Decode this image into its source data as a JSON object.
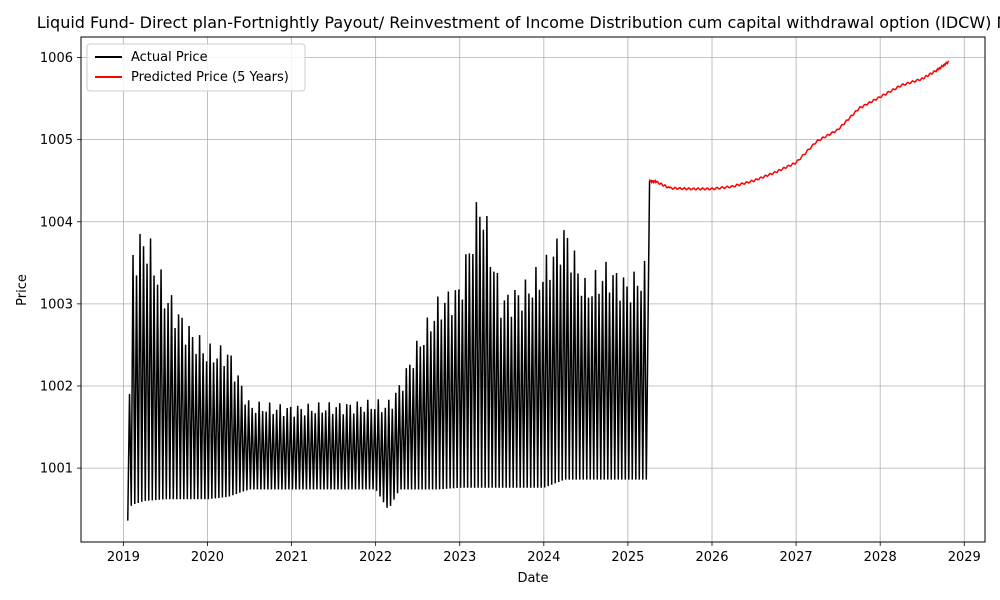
{
  "chart_data": {
    "type": "line",
    "title": "Liquid Fund- Direct plan-Fortnightly Payout/ Reinvestment of Income Distribution cum capital withdrawal option (IDCW) NAV",
    "xlabel": "Date",
    "ylabel": "Price",
    "xlim": [
      "2018-07-01",
      "2029-04-01"
    ],
    "ylim": [
      1000.1,
      1006.25
    ],
    "x_ticks": [
      "2019",
      "2020",
      "2021",
      "2022",
      "2023",
      "2024",
      "2025",
      "2026",
      "2027",
      "2028",
      "2029"
    ],
    "y_ticks": [
      "1001",
      "1002",
      "1003",
      "1004",
      "1005",
      "1006"
    ],
    "grid": true,
    "legend": "top-left",
    "series": [
      {
        "name": "Actual Price",
        "color": "#000000",
        "style": "oscillating",
        "envelope": [
          {
            "date": "2019-01-20",
            "low": 1000.36,
            "high": 1000.36
          },
          {
            "date": "2019-02-05",
            "low": 1000.55,
            "high": 1003.72
          },
          {
            "date": "2019-04-05",
            "low": 1000.6,
            "high": 1004.0
          },
          {
            "date": "2019-07-01",
            "low": 1000.62,
            "high": 1003.28
          },
          {
            "date": "2019-10-01",
            "low": 1000.62,
            "high": 1002.82
          },
          {
            "date": "2020-01-01",
            "low": 1000.62,
            "high": 1002.52
          },
          {
            "date": "2020-04-01",
            "low": 1000.65,
            "high": 1002.5
          },
          {
            "date": "2020-07-01",
            "low": 1000.74,
            "high": 1001.82
          },
          {
            "date": "2021-01-01",
            "low": 1000.74,
            "high": 1001.78
          },
          {
            "date": "2021-07-01",
            "low": 1000.74,
            "high": 1001.81
          },
          {
            "date": "2022-01-01",
            "low": 1000.74,
            "high": 1001.84
          },
          {
            "date": "2022-02-25",
            "low": 1000.49,
            "high": 1001.84
          },
          {
            "date": "2022-04-15",
            "low": 1000.74,
            "high": 1002.06
          },
          {
            "date": "2022-07-01",
            "low": 1000.74,
            "high": 1002.58
          },
          {
            "date": "2022-10-01",
            "low": 1000.74,
            "high": 1003.12
          },
          {
            "date": "2023-01-01",
            "low": 1000.76,
            "high": 1003.3
          },
          {
            "date": "2023-04-01",
            "low": 1000.76,
            "high": 1004.48
          },
          {
            "date": "2023-07-01",
            "low": 1000.76,
            "high": 1003.15
          },
          {
            "date": "2023-10-01",
            "low": 1000.76,
            "high": 1003.28
          },
          {
            "date": "2024-01-01",
            "low": 1000.76,
            "high": 1003.55
          },
          {
            "date": "2024-04-01",
            "low": 1000.86,
            "high": 1004.04
          },
          {
            "date": "2024-07-01",
            "low": 1000.86,
            "high": 1003.3
          },
          {
            "date": "2024-10-01",
            "low": 1000.86,
            "high": 1003.55
          },
          {
            "date": "2025-01-01",
            "low": 1000.86,
            "high": 1003.35
          },
          {
            "date": "2025-03-25",
            "low": 1000.86,
            "high": 1003.55
          }
        ],
        "end": {
          "date": "2025-04-05",
          "value": 1004.5
        }
      },
      {
        "name": "Predicted Price (5 Years)",
        "color": "#ff0000",
        "style": "line",
        "points": [
          {
            "date": "2025-04-05",
            "value": 1004.5
          },
          {
            "date": "2025-05-01",
            "value": 1004.49
          },
          {
            "date": "2025-07-01",
            "value": 1004.41
          },
          {
            "date": "2025-10-01",
            "value": 1004.4
          },
          {
            "date": "2026-01-01",
            "value": 1004.4
          },
          {
            "date": "2026-04-01",
            "value": 1004.43
          },
          {
            "date": "2026-07-01",
            "value": 1004.5
          },
          {
            "date": "2026-10-01",
            "value": 1004.6
          },
          {
            "date": "2027-01-01",
            "value": 1004.72
          },
          {
            "date": "2027-04-01",
            "value": 1004.98
          },
          {
            "date": "2027-07-01",
            "value": 1005.12
          },
          {
            "date": "2027-10-01",
            "value": 1005.38
          },
          {
            "date": "2028-01-01",
            "value": 1005.52
          },
          {
            "date": "2028-04-01",
            "value": 1005.66
          },
          {
            "date": "2028-07-01",
            "value": 1005.74
          },
          {
            "date": "2028-09-01",
            "value": 1005.84
          },
          {
            "date": "2028-10-25",
            "value": 1005.95
          }
        ]
      }
    ]
  }
}
